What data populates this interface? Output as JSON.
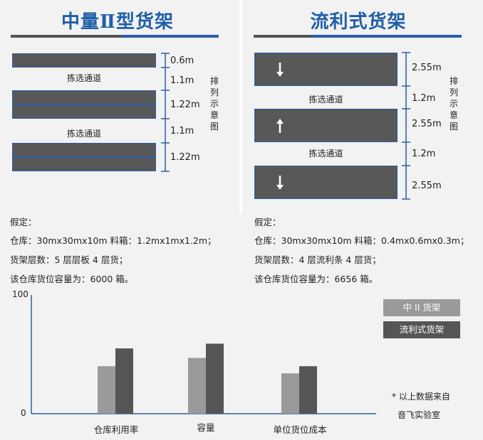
{
  "left": {
    "title": "中量Ⅱ型货架",
    "aisles": [
      "拣选通道",
      "拣选通道"
    ],
    "dims": [
      "0.6m",
      "1.1m",
      "1.22m",
      "1.1m",
      "1.22m"
    ],
    "side_label": [
      "排",
      "列",
      "示",
      "意",
      "图"
    ],
    "assumptions": [
      "假定：",
      "仓库：30mx30mx10m 料箱：1.2mx1mx1.2m；",
      "货架层数：5 层层板 4 层货；",
      "该仓库货位容量为：6000 箱。"
    ]
  },
  "right": {
    "title": "流利式货架",
    "aisles": [
      "拣选通道",
      "拣选通道"
    ],
    "dims": [
      "2.55m",
      "1.2m",
      "2.55m",
      "1.2m",
      "2.55m"
    ],
    "side_label": [
      "排",
      "列",
      "示",
      "意",
      "图"
    ],
    "arrows": [
      "down",
      "up",
      "down"
    ],
    "assumptions": [
      "假定：",
      "仓库：30mx30mx10m 料箱：0.4mx0.6mx0.3m；",
      "货架层数：4 层流利条 4 层货；",
      "该仓库货位容量为：6656 箱。"
    ]
  },
  "chart_data": {
    "type": "bar",
    "categories": [
      "仓库利用率",
      "容量",
      "单位货位成本"
    ],
    "series": [
      {
        "name": "中 II 货架",
        "values": [
          40,
          47,
          34
        ],
        "color": "#9a9a9a"
      },
      {
        "name": "流利式货架",
        "values": [
          55,
          59,
          40
        ],
        "color": "#555555"
      }
    ],
    "ylim": [
      0,
      100
    ],
    "ytick_labels": [
      "0",
      "100"
    ],
    "legend_position": "top-right"
  },
  "note": [
    "* 以上数据来自",
    "音飞实验室"
  ]
}
